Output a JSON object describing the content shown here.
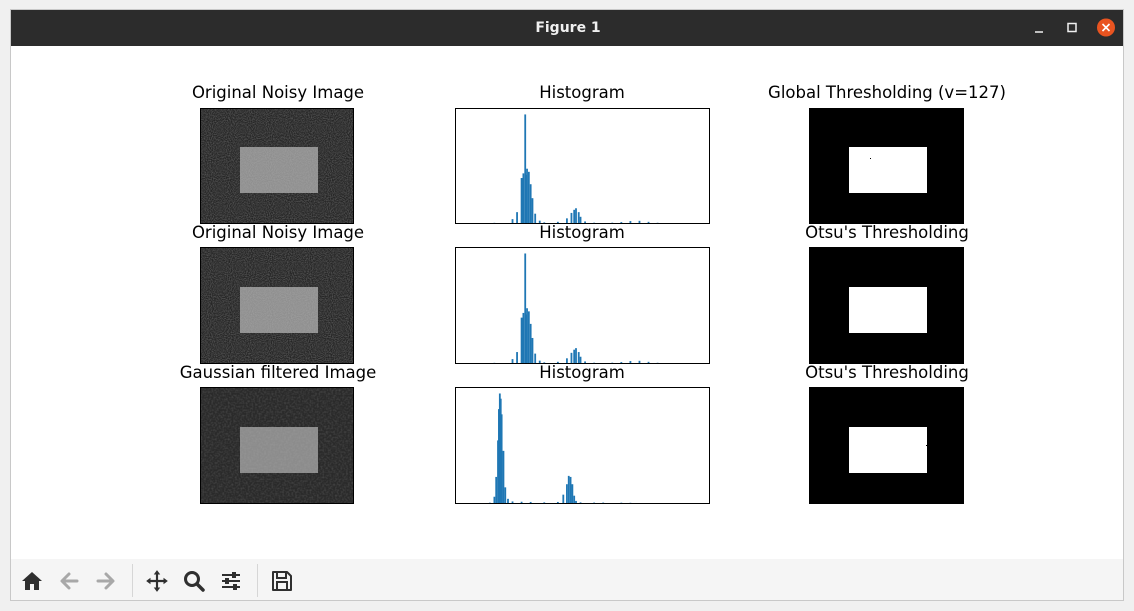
{
  "window": {
    "title": "Figure 1"
  },
  "panels": [
    {
      "title": "Original Noisy Image"
    },
    {
      "title": "Histogram"
    },
    {
      "title": "Global Thresholding (v=127)"
    },
    {
      "title": "Original Noisy Image"
    },
    {
      "title": "Histogram"
    },
    {
      "title": "Otsu's Thresholding"
    },
    {
      "title": "Gaussian filtered Image"
    },
    {
      "title": "Histogram"
    },
    {
      "title": "Otsu's Thresholding"
    }
  ],
  "colors": {
    "histogram_bar": "#1f77b4",
    "titlebar": "#2c2c2c",
    "close_button": "#e95420"
  },
  "chart_data": [
    {
      "type": "bar",
      "title": "Histogram",
      "x": [
        30,
        50,
        55,
        60,
        62,
        64,
        65,
        66,
        68,
        70,
        72,
        75,
        80,
        85,
        100,
        110,
        115,
        118,
        120,
        123,
        125,
        130,
        140,
        160,
        170,
        180,
        190,
        200,
        210
      ],
      "values": [
        20,
        500,
        1400,
        5800,
        6400,
        14000,
        6200,
        7000,
        6600,
        5000,
        3200,
        1200,
        300,
        80,
        150,
        600,
        1300,
        1700,
        1900,
        1400,
        800,
        200,
        40,
        40,
        120,
        250,
        280,
        150,
        30
      ]
    },
    {
      "type": "bar",
      "title": "Histogram",
      "x": [
        30,
        50,
        55,
        60,
        62,
        64,
        65,
        66,
        68,
        70,
        72,
        75,
        80,
        85,
        100,
        110,
        115,
        118,
        120,
        123,
        125,
        130,
        140,
        160,
        170,
        180,
        190,
        200,
        210
      ],
      "values": [
        20,
        500,
        1400,
        5800,
        6400,
        14000,
        6200,
        7000,
        6600,
        5000,
        3200,
        1200,
        300,
        80,
        150,
        600,
        1300,
        1700,
        1900,
        1400,
        800,
        200,
        40,
        40,
        120,
        250,
        280,
        150,
        30
      ]
    },
    {
      "type": "bar",
      "title": "Histogram",
      "x": [
        25,
        30,
        32,
        34,
        35,
        36,
        37,
        38,
        40,
        42,
        45,
        50,
        60,
        70,
        85,
        100,
        106,
        110,
        112,
        114,
        116,
        118,
        120,
        125,
        140,
        150,
        170,
        180
      ],
      "values": [
        30,
        600,
        2500,
        6000,
        9000,
        10500,
        10000,
        8500,
        5000,
        1500,
        400,
        150,
        120,
        100,
        60,
        100,
        800,
        1800,
        2600,
        2500,
        1800,
        700,
        200,
        60,
        40,
        40,
        30,
        20
      ]
    }
  ]
}
